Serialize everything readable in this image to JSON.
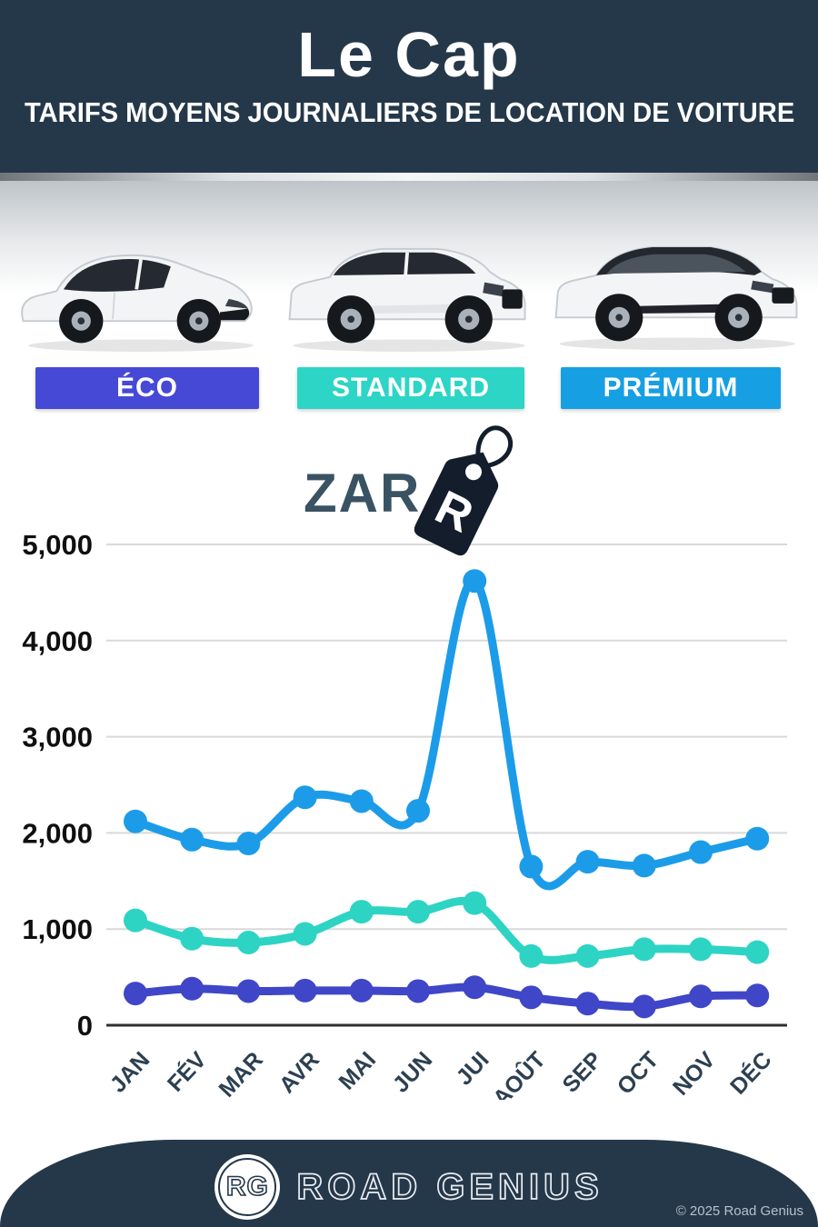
{
  "header": {
    "title": "Le Cap",
    "subtitle": "TARIFS MOYENS JOURNALIERS DE LOCATION DE VOITURE",
    "bg_color": "#25384a"
  },
  "categories": [
    {
      "label": "ÉCO",
      "color": "#4649d6",
      "car": "hatchback"
    },
    {
      "label": "STANDARD",
      "color": "#2cd5c5",
      "car": "suv"
    },
    {
      "label": "PRÉMIUM",
      "color": "#179fe3",
      "car": "luxury-suv"
    }
  ],
  "currency": {
    "label": "ZAR",
    "tag_letter": "R",
    "tag_color": "#141d2c"
  },
  "chart_data": {
    "type": "line",
    "categories": [
      "JAN",
      "FÉV",
      "MAR",
      "AVR",
      "MAI",
      "JUN",
      "JUI",
      "AOÛT",
      "SEP",
      "OCT",
      "NOV",
      "DÉC"
    ],
    "series": [
      {
        "name": "PRÉMIUM",
        "color": "#1c9ce8",
        "values": [
          2120,
          1930,
          1890,
          2370,
          2330,
          2230,
          4620,
          1650,
          1700,
          1660,
          1800,
          1940
        ]
      },
      {
        "name": "STANDARD",
        "color": "#2dd4c3",
        "values": [
          1090,
          900,
          860,
          950,
          1180,
          1180,
          1270,
          720,
          720,
          790,
          790,
          760
        ]
      },
      {
        "name": "ÉCO",
        "color": "#3f46c7",
        "values": [
          330,
          380,
          355,
          360,
          360,
          355,
          395,
          290,
          225,
          195,
          300,
          310
        ]
      }
    ],
    "ylabel": "ZAR",
    "yticks": [
      0,
      1000,
      2000,
      3000,
      4000,
      5000
    ],
    "ylim": [
      0,
      5000
    ],
    "grid": true,
    "legend_position": "category-bars-above-chart"
  },
  "footer": {
    "badge": "RG",
    "brand": "ROAD GENIUS",
    "copyright": "© 2025 Road Genius",
    "bg_color": "#25384a"
  }
}
